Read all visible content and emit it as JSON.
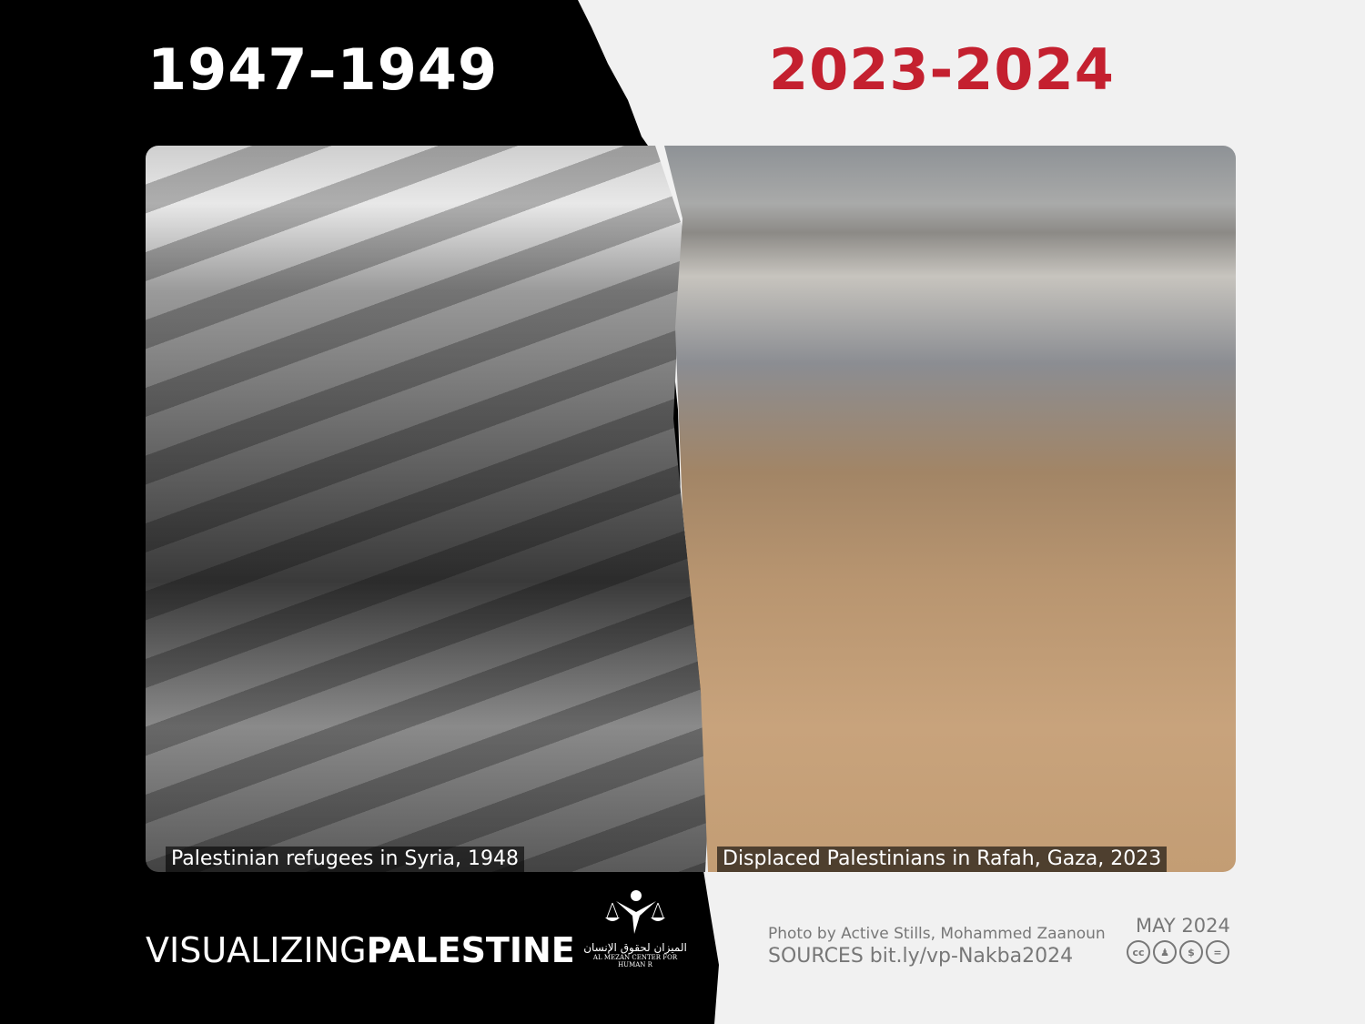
{
  "header": {
    "left_period": "1947–1949",
    "right_period": "2023-2024"
  },
  "photos": {
    "left_caption": "Palestinian refugees in Syria, 1948",
    "right_caption": "Displaced Palestinians in Rafah, Gaza, 2023"
  },
  "footer": {
    "brand_light": "VISUALIZING",
    "brand_bold": "PALESTINE",
    "partner_logo_arabic": "الميزان لحقوق الإنسان",
    "partner_logo_english": "AL MEZAN CENTER FOR HUMAN R",
    "credit": "Photo by Active Stills, Mohammed Zaanoun",
    "sources": "SOURCES bit.ly/vp-Nakba2024",
    "date": "MAY 2024",
    "license_icons": [
      "cc",
      "by",
      "nc",
      "nd"
    ]
  },
  "colors": {
    "accent": "#c4202f",
    "dark": "#000000",
    "light": "#f1f1f1"
  }
}
